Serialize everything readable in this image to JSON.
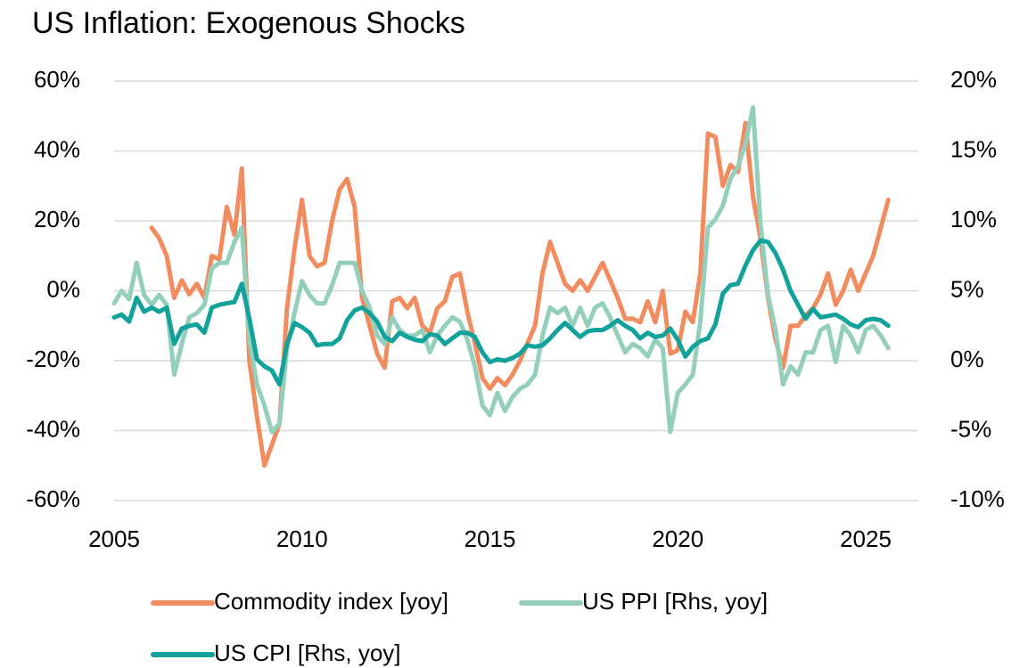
{
  "chart_data": {
    "type": "line",
    "title": "US Inflation: Exogenous Shocks",
    "x": [
      2005,
      2005.2,
      2005.4,
      2005.6,
      2005.8,
      2006,
      2006.2,
      2006.4,
      2006.6,
      2006.8,
      2007,
      2007.2,
      2007.4,
      2007.6,
      2007.8,
      2008,
      2008.2,
      2008.4,
      2008.6,
      2008.8,
      2009,
      2009.2,
      2009.4,
      2009.6,
      2009.8,
      2010,
      2010.2,
      2010.4,
      2010.6,
      2010.8,
      2011,
      2011.2,
      2011.4,
      2011.6,
      2011.8,
      2012,
      2012.2,
      2012.4,
      2012.6,
      2012.8,
      2013,
      2013.2,
      2013.4,
      2013.6,
      2013.8,
      2014,
      2014.2,
      2014.4,
      2014.6,
      2014.8,
      2015,
      2015.2,
      2015.4,
      2015.6,
      2015.8,
      2016,
      2016.2,
      2016.4,
      2016.6,
      2016.8,
      2017,
      2017.2,
      2017.4,
      2017.6,
      2017.8,
      2018,
      2018.2,
      2018.4,
      2018.6,
      2018.8,
      2019,
      2019.2,
      2019.4,
      2019.6,
      2019.8,
      2020,
      2020.2,
      2020.4,
      2020.6,
      2020.8,
      2021,
      2021.2,
      2021.4,
      2021.6,
      2021.8,
      2022,
      2022.2,
      2022.4,
      2022.6,
      2022.8,
      2023,
      2023.2,
      2023.4,
      2023.6,
      2023.8,
      2024,
      2024.2,
      2024.4,
      2024.6,
      2024.8,
      2025,
      2025.2,
      2025.4,
      2025.6
    ],
    "series": [
      {
        "name": "Commodity index [yoy]",
        "color": "#f28b5e",
        "values": [
          null,
          null,
          null,
          null,
          null,
          18,
          15,
          10,
          -2,
          3,
          -1,
          2,
          -2,
          10,
          9,
          24,
          16,
          35,
          -20,
          -36,
          -50,
          -44,
          -38,
          -5,
          12,
          26,
          10,
          7,
          8,
          20,
          29,
          32,
          24,
          -2,
          -10,
          -18,
          -22,
          -3,
          -2,
          -5,
          -2,
          -10,
          -12,
          -5,
          -3,
          4,
          5,
          -6,
          -15,
          -25,
          -28,
          -25,
          -27,
          -24,
          -20,
          -15,
          -10,
          5,
          14,
          8,
          2,
          0,
          3,
          0,
          4,
          8,
          3,
          -2,
          -8,
          -8,
          -9,
          -3,
          -9,
          0,
          -18,
          -17,
          -6,
          -9,
          5,
          45,
          44,
          30,
          36,
          34,
          48,
          27,
          15,
          -2,
          -14,
          -22,
          -10,
          -10,
          -7,
          -5,
          -1,
          5,
          -4,
          0,
          6,
          0,
          5,
          10,
          18,
          26
        ]
      },
      {
        "name": "US PPI [Rhs, yoy]",
        "color": "#93cfba",
        "axis": "y2",
        "values": [
          4.1,
          5,
          4.4,
          7,
          4.7,
          4,
          4.7,
          4,
          -1,
          1.2,
          3.1,
          3.4,
          4,
          6.6,
          7,
          7,
          8.5,
          9.5,
          1.5,
          -1.7,
          -3.2,
          -5.1,
          -4.5,
          0.9,
          3.4,
          5.7,
          4.7,
          4.1,
          4.1,
          5.4,
          7,
          7,
          7,
          5,
          3.8,
          1.8,
          1.2,
          3.1,
          2.2,
          1.8,
          1.8,
          2.2,
          0.6,
          1.8,
          2.5,
          3.1,
          2.8,
          1.5,
          -0.4,
          -3.2,
          -3.9,
          -2.3,
          -3.6,
          -2.6,
          -2,
          -1.7,
          -1,
          1.8,
          3.8,
          3.4,
          3.8,
          2.5,
          3.8,
          2.5,
          3.8,
          4.1,
          3.1,
          1.8,
          0.6,
          1.2,
          0.9,
          0.3,
          1.5,
          0.9,
          -5.1,
          -2.3,
          -1.7,
          -1,
          2.8,
          9.5,
          10.1,
          11.1,
          13,
          13.9,
          15.5,
          18.1,
          9.8,
          4.7,
          2.2,
          -1.7,
          -0.4,
          -1,
          0.6,
          0.6,
          2.2,
          2.5,
          -0.1,
          2.5,
          1.8,
          0.6,
          2.2,
          2.5,
          1.8,
          0.9
        ]
      },
      {
        "name": "US CPI [Rhs, yoy]",
        "color": "#12a29b",
        "axis": "y2",
        "values": [
          3.1,
          3.3,
          2.8,
          4.5,
          3.5,
          3.8,
          3.5,
          3.8,
          1.2,
          2.3,
          2.5,
          2.6,
          2.0,
          3.8,
          4.0,
          4.1,
          4.2,
          5.5,
          3.0,
          0.1,
          -0.4,
          -0.7,
          -1.7,
          1.2,
          2.7,
          2.4,
          2.0,
          1.1,
          1.2,
          1.2,
          1.6,
          2.9,
          3.6,
          3.8,
          3.4,
          2.8,
          1.7,
          1.4,
          2.0,
          1.7,
          1.5,
          1.4,
          1.9,
          1.8,
          1.2,
          1.6,
          2.0,
          2.0,
          1.7,
          0.6,
          -0.1,
          0.1,
          0.0,
          0.2,
          0.5,
          1.1,
          1.0,
          1.1,
          1.6,
          2.2,
          2.7,
          2.2,
          1.7,
          2.1,
          2.2,
          2.2,
          2.5,
          2.9,
          2.5,
          2.2,
          1.6,
          2.0,
          1.7,
          1.8,
          2.3,
          1.5,
          0.3,
          1.0,
          1.4,
          1.6,
          2.6,
          4.8,
          5.4,
          5.5,
          6.8,
          7.9,
          8.6,
          8.5,
          7.7,
          6.5,
          5.0,
          4.0,
          3.0,
          3.7,
          3.1,
          3.2,
          3.3,
          3.0,
          2.6,
          2.4,
          2.9,
          3.0,
          2.9,
          2.5
        ]
      }
    ],
    "xlim": [
      2005,
      2026.4
    ],
    "xticks": [
      2005,
      2010,
      2015,
      2020,
      2025
    ],
    "ylim": [
      -60,
      60
    ],
    "yticks": [
      {
        "value": -60,
        "label": "-60%"
      },
      {
        "value": -40,
        "label": "-40%"
      },
      {
        "value": -20,
        "label": "-20%"
      },
      {
        "value": 0,
        "label": "0%"
      },
      {
        "value": 20,
        "label": "20%"
      },
      {
        "value": 40,
        "label": "40%"
      },
      {
        "value": 60,
        "label": "60%"
      }
    ],
    "y2lim": [
      -10,
      20
    ],
    "y2ticks": [
      {
        "value": -10,
        "label": "-10%"
      },
      {
        "value": -5,
        "label": "-5%"
      },
      {
        "value": 0,
        "label": "0%"
      },
      {
        "value": 5,
        "label": "5%"
      },
      {
        "value": 10,
        "label": "10%"
      },
      {
        "value": 15,
        "label": "15%"
      },
      {
        "value": 20,
        "label": "20%"
      }
    ],
    "grid": true
  }
}
